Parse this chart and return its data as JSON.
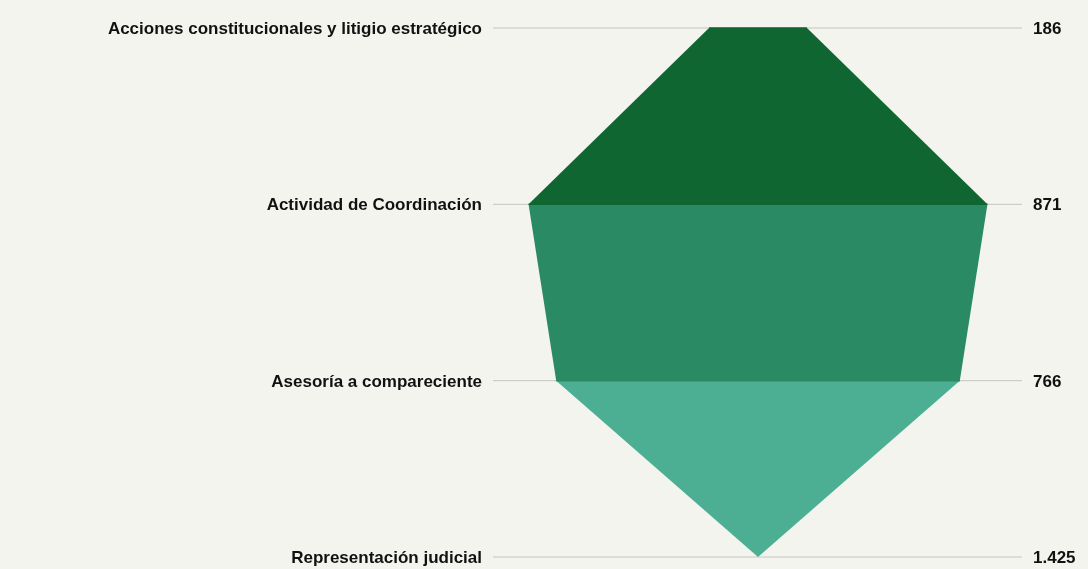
{
  "chart_data": {
    "type": "other",
    "categories": [
      "Acciones constitucionales y litigio estratégico",
      "Actividad de Coordinación",
      "Asesoría a compareciente",
      "Representación judicial"
    ],
    "values": [
      186,
      871,
      766,
      1425
    ],
    "value_labels": [
      "186",
      "871",
      "766",
      "1.425"
    ],
    "colors": [
      "#0f6630",
      "#0f6630",
      "#2a8a63",
      "#4caf94"
    ]
  }
}
